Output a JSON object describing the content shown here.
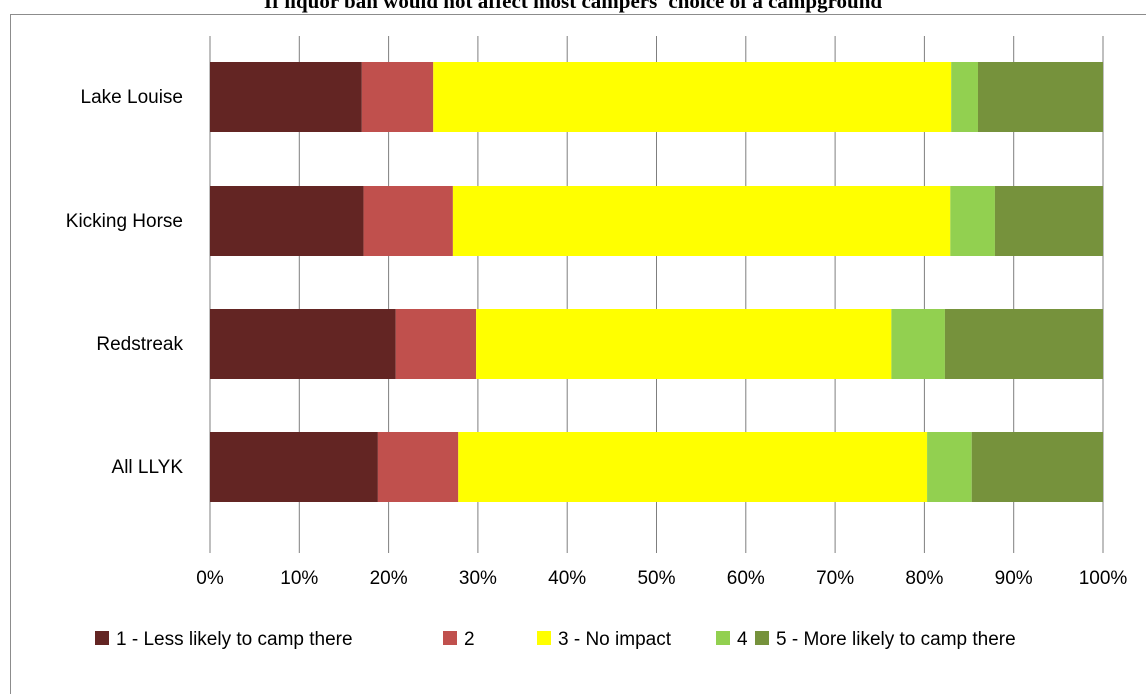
{
  "chart_data": {
    "type": "bar",
    "orientation": "horizontal",
    "stacked": true,
    "percent_stacked": true,
    "title": "If liquor ban would not affect most campers' choice of a campground",
    "xlabel": "",
    "ylabel": "",
    "xlim": [
      0,
      100
    ],
    "x_ticks": [
      "0%",
      "10%",
      "20%",
      "30%",
      "40%",
      "50%",
      "60%",
      "70%",
      "80%",
      "90%",
      "100%"
    ],
    "gridlines": "vertical",
    "legend_position": "bottom",
    "categories": [
      "Lake Louise",
      "Kicking Horse",
      "Redstreak",
      "All LLYK"
    ],
    "series": [
      {
        "name": "1 - Less likely to camp there",
        "color": "#632523",
        "values": [
          17,
          17.2,
          20.8,
          18.8
        ]
      },
      {
        "name": "2",
        "color": "#C0504D",
        "values": [
          8,
          10,
          9,
          9
        ]
      },
      {
        "name": "3 - No impact",
        "color": "#FFFF00",
        "values": [
          58,
          55.7,
          46.5,
          52.5
        ]
      },
      {
        "name": "4",
        "color": "#92D050",
        "values": [
          3,
          5,
          6,
          5
        ]
      },
      {
        "name": "5 - More likely to camp there",
        "color": "#76923C",
        "values": [
          14,
          12.1,
          17.7,
          14.7
        ]
      }
    ]
  }
}
